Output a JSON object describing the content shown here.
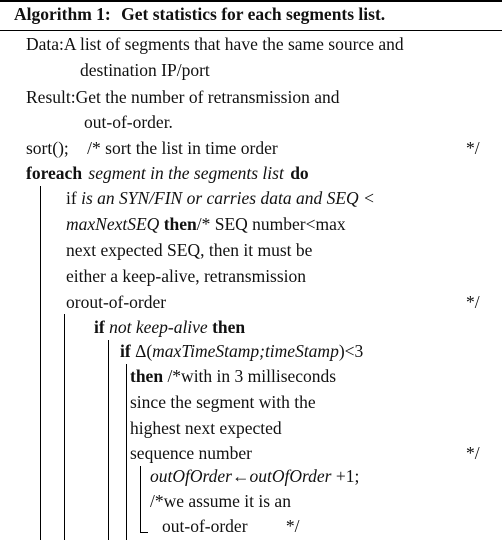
{
  "algorithm": {
    "caption_label": "Algorithm 1:",
    "caption_title": "Get statistics for each segments list.",
    "data_label": "Data:",
    "data_text_1": "A list of segments that have the same source and",
    "data_text_2": "destination IP/port",
    "result_label": "Result:",
    "result_text_1": "Get the number of retransmission and",
    "result_text_2": "out-of-order.",
    "sort_call": "sort();",
    "sort_comment": "/* sort the list in time order",
    "comment_end": "*/",
    "foreach_kw": "foreach",
    "foreach_cond": "segment in the segments list",
    "do_kw": "do",
    "if_kw": "if",
    "if1_cond_1": "is an SYN/FIN or carries data and SEQ <",
    "if1_cond_2": "maxNextSEQ",
    "then_kw": "then",
    "if1_comment_1": "/*   SEQ number<max",
    "if1_comment_2": "next expected SEQ, then it must be",
    "if1_comment_3": "either a keep-alive, retransmission",
    "if1_comment_4": "orout-of-order",
    "if2_cond": "not keep-alive",
    "if3_delta": "Δ(",
    "if3_args": "maxTimeStamp;timeStamp",
    "if3_rest": ")<3",
    "if3_comment_1": "/*with in 3 milliseconds",
    "if3_comment_2": "since the segment with the",
    "if3_comment_3": "highest next expected",
    "if3_comment_4": "sequence number",
    "assign_lhs": "outOfOrder",
    "assign_arrow": "←",
    "assign_rhs": "outOfOrder",
    "assign_tail": " +1;",
    "assign_comment_1": "/*we assume it is an",
    "assign_comment_2": "out-of-order"
  }
}
